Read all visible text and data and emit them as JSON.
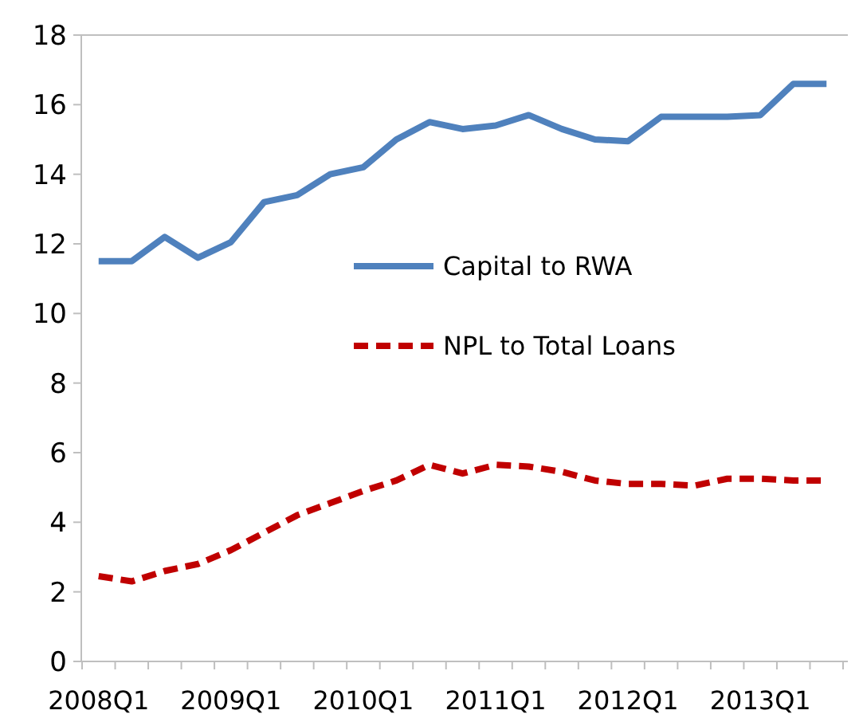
{
  "chart_data": {
    "type": "line",
    "categories": [
      "2008Q1",
      null,
      null,
      null,
      "2009Q1",
      null,
      null,
      null,
      "2010Q1",
      null,
      null,
      null,
      "2011Q1",
      null,
      null,
      null,
      "2012Q1",
      null,
      null,
      null,
      "2013Q1",
      null,
      null
    ],
    "series": [
      {
        "name": "Capital to RWA",
        "color": "#4f81bd",
        "line_style": "solid",
        "values": [
          11.5,
          11.5,
          12.2,
          11.6,
          12.05,
          13.2,
          13.4,
          14.0,
          14.2,
          15.0,
          15.5,
          15.3,
          15.4,
          15.7,
          15.3,
          15.0,
          14.95,
          15.65,
          15.65,
          15.65,
          15.7,
          16.6,
          16.6
        ]
      },
      {
        "name": "NPL to Total Loans",
        "color": "#c00000",
        "line_style": "dashed",
        "values": [
          2.45,
          2.3,
          2.6,
          2.8,
          3.2,
          3.7,
          4.2,
          4.55,
          4.9,
          5.2,
          5.65,
          5.4,
          5.65,
          5.6,
          5.45,
          5.2,
          5.1,
          5.1,
          5.05,
          5.25,
          5.25,
          5.2,
          5.2
        ]
      }
    ],
    "ylim": [
      0,
      18
    ],
    "yticks": [
      0,
      2,
      4,
      6,
      8,
      10,
      12,
      14,
      16,
      18
    ],
    "grid": false,
    "legend": "right"
  }
}
